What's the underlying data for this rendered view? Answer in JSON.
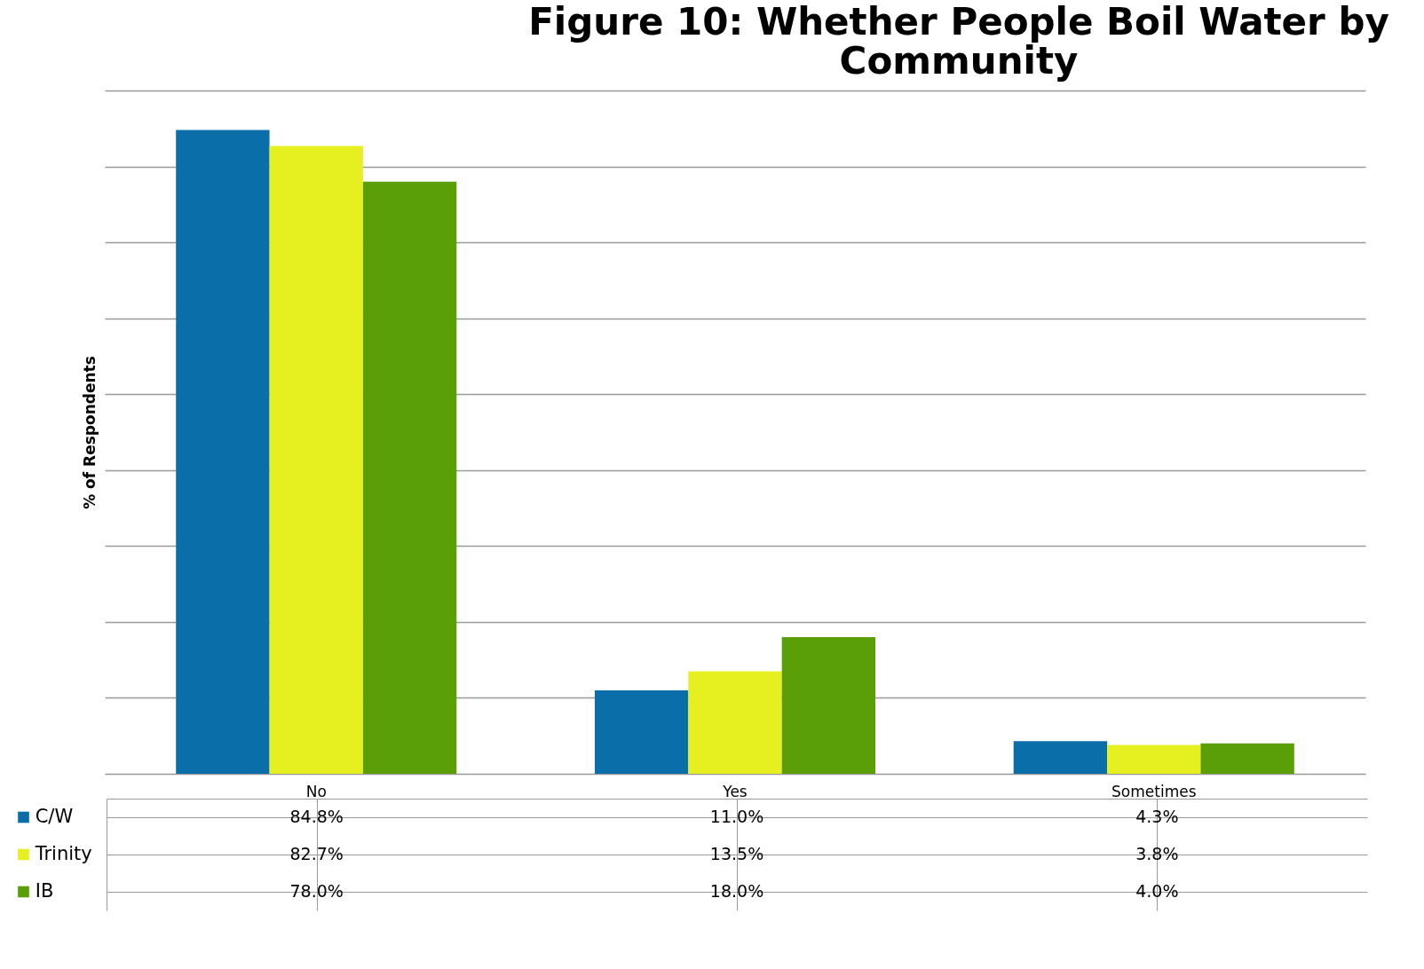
{
  "chart_data": {
    "type": "bar",
    "title": "Figure 10: Whether People Boil Water by Community",
    "ylabel": "% of Respondents",
    "categories": [
      "No",
      "Yes",
      "Sometimes"
    ],
    "series": [
      {
        "name": "C/W",
        "color": "#0a6ea8",
        "values": [
          84.8,
          11.0,
          4.3
        ],
        "value_labels": [
          "84.8%",
          "11.0%",
          "4.3%"
        ]
      },
      {
        "name": "Trinity",
        "color": "#e6f020",
        "values": [
          82.7,
          13.5,
          3.8
        ],
        "value_labels": [
          "82.7%",
          "13.5%",
          "3.8%"
        ]
      },
      {
        "name": "IB",
        "color": "#5a9e08",
        "values": [
          78.0,
          18.0,
          4.0
        ],
        "value_labels": [
          "78.0%",
          "18.0%",
          "4.0%"
        ]
      }
    ],
    "ylim": [
      0,
      90
    ],
    "yticks": [
      {
        "value": 0,
        "label": null
      },
      {
        "value": 10,
        "label": null
      },
      {
        "value": 20,
        "label": null
      },
      {
        "value": 30,
        "label": null
      },
      {
        "value": 40,
        "label": null
      },
      {
        "value": 50,
        "label": null
      },
      {
        "value": 60,
        "label": null
      },
      {
        "value": 70,
        "label": null
      },
      {
        "value": 80,
        "label": null
      },
      {
        "value": 90,
        "label": null
      }
    ],
    "grid": "y",
    "tick_labels": "x",
    "legend": "bottom"
  }
}
